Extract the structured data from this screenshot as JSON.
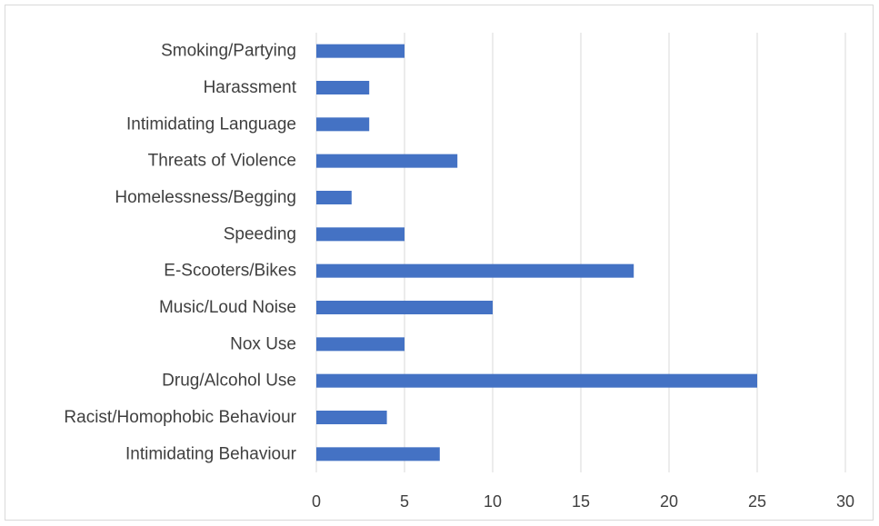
{
  "chart_data": {
    "type": "bar",
    "orientation": "horizontal",
    "title": "",
    "xlabel": "",
    "ylabel": "",
    "categories": [
      "Smoking/Partying",
      "Harassment",
      "Intimidating Language",
      "Threats of Violence",
      "Homelessness/Begging",
      "Speeding",
      "E-Scooters/Bikes",
      "Music/Loud Noise",
      "Nox Use",
      "Drug/Alcohol Use",
      "Racist/Homophobic Behaviour",
      "Intimidating Behaviour"
    ],
    "values": [
      5,
      3,
      3,
      8,
      2,
      5,
      18,
      10,
      5,
      25,
      4,
      7
    ],
    "xlim": [
      0,
      30
    ],
    "xticks": [
      0,
      5,
      10,
      15,
      20,
      25,
      30
    ],
    "grid": "vertical",
    "legend": "none",
    "bar_color": "#4472c4"
  }
}
